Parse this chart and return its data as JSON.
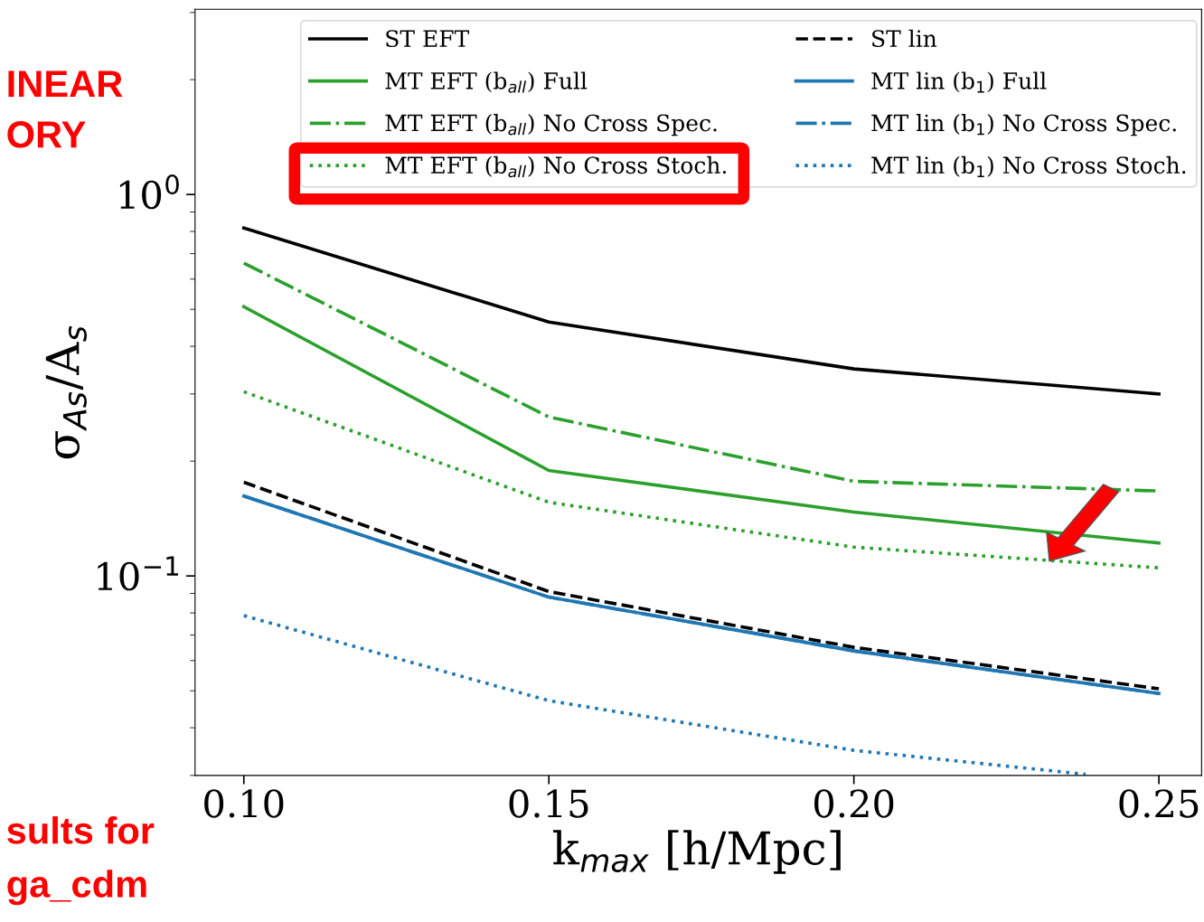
{
  "chart_data": {
    "type": "line",
    "xlabel": "k$_{max}$ [h/Mpc]",
    "ylabel": "σ$_{As}$/A$_{s}$",
    "x": [
      0.1,
      0.15,
      0.2,
      0.25
    ],
    "xlim": [
      0.092,
      0.257
    ],
    "xticks": [
      {
        "value": 0.1,
        "label": "0.10"
      },
      {
        "value": 0.15,
        "label": "0.15"
      },
      {
        "value": 0.2,
        "label": "0.20"
      },
      {
        "value": 0.25,
        "label": "0.25"
      }
    ],
    "log": "y",
    "ylim": [
      0.03,
      3.06
    ],
    "yticks": [
      {
        "value": 0.1,
        "label": "10$^{−1}$"
      },
      {
        "value": 1,
        "label": "10$^{0}$"
      }
    ],
    "grid": false,
    "legend": "top",
    "marker": "none",
    "series": [
      {
        "name": "ST EFT",
        "color": "#000000",
        "line_style": "solid",
        "values": [
          0.817,
          0.463,
          0.349,
          0.3
        ]
      },
      {
        "name": "MT EFT (b$_{all}$) Full",
        "color": "#2ca02c",
        "line_style": "solid",
        "values": [
          0.508,
          0.189,
          0.147,
          0.122
        ]
      },
      {
        "name": "MT EFT (b$_{all}$) No Cross Spec.",
        "color": "#2ca02c",
        "line_style": "dashdot",
        "values": [
          0.661,
          0.261,
          0.177,
          0.167
        ]
      },
      {
        "name": "MT EFT (b$_{all}$) No Cross Stoch.",
        "color": "#2ca02c",
        "line_style": "dotted",
        "values": [
          0.304,
          0.156,
          0.119,
          0.105
        ]
      },
      {
        "name": "ST lin",
        "color": "#000000",
        "line_style": "dashed",
        "values": [
          0.176,
          0.091,
          0.065,
          0.0506
        ]
      },
      {
        "name": "MT lin (b$_{1}$) Full",
        "color": "#1f77b4",
        "line_style": "solid",
        "values": [
          0.162,
          0.088,
          0.0636,
          0.0492
        ]
      },
      {
        "name": "MT lin (b$_{1}$) No Cross Spec.",
        "color": "#1f77b4",
        "line_style": "dashdot",
        "values": [
          0.162,
          0.088,
          0.0636,
          0.0492
        ]
      },
      {
        "name": "MT lin (b$_{1}$) No Cross Stoch.",
        "color": "#1f77b4",
        "line_style": "dotted",
        "x": [
          0.1,
          0.15,
          0.2,
          0.238
        ],
        "values": [
          0.0787,
          0.0471,
          0.0349,
          0.0302
        ]
      }
    ],
    "annotations": [
      "INEAR",
      "ORY",
      "sults for",
      "ga_cdm"
    ]
  }
}
